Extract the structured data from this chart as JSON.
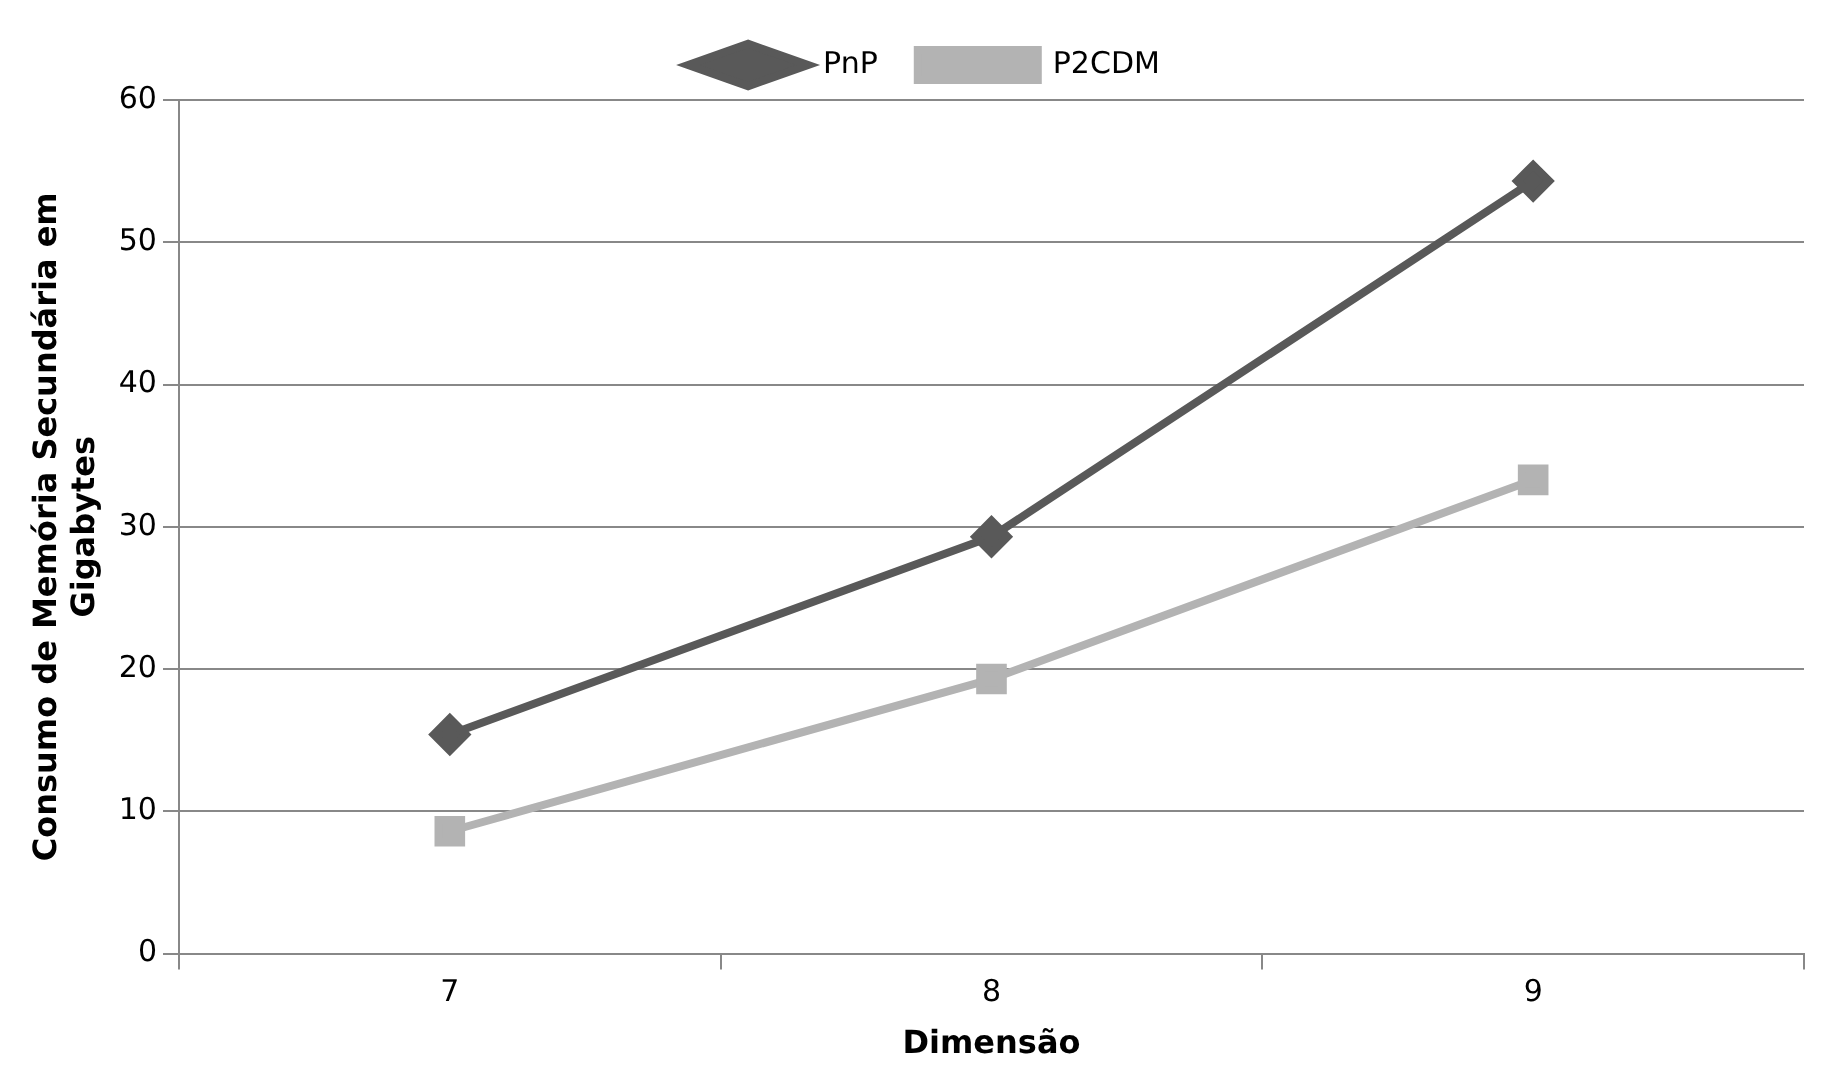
{
  "chart_data": {
    "type": "line",
    "xlabel": "Dimensão",
    "ylabel": "Consumo de Memória Secundária em Gigabytes",
    "categories": [
      "7",
      "8",
      "9"
    ],
    "series": [
      {
        "name": "PnP",
        "color": "#595959",
        "values": [
          15.4,
          29.3,
          54.3
        ],
        "marker": "diamond"
      },
      {
        "name": "P2CDM",
        "color": "#b3b3b3",
        "values": [
          8.6,
          19.3,
          33.3
        ],
        "marker": "square"
      }
    ],
    "ylim": [
      0,
      60
    ],
    "yticks": [
      0,
      10,
      20,
      30,
      40,
      50,
      60
    ],
    "grid": "y",
    "legend": "top",
    "line_style": "solid"
  }
}
